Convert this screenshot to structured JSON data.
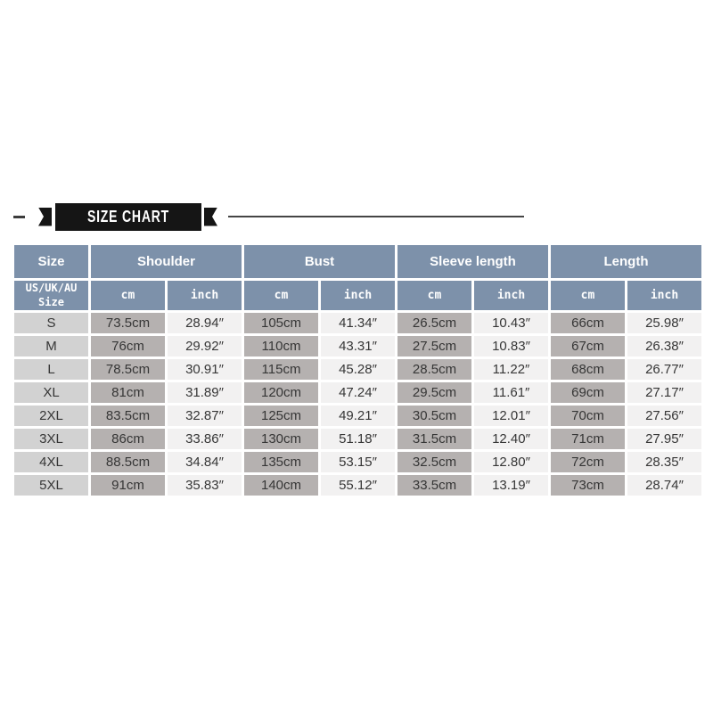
{
  "banner": {
    "title": "SIZE CHART"
  },
  "colors": {
    "header_blue": "#7d91aa",
    "size_cell_gray": "#d2d2d2",
    "cm_cell_gray": "#b5b1b0",
    "inch_cell_light": "#f2f1f1",
    "ribbon_black": "#151515",
    "text_dark": "#363636"
  },
  "chart_data": {
    "type": "table",
    "title": "SIZE CHART",
    "column_groups": [
      "Size",
      "Shoulder",
      "Bust",
      "Sleeve length",
      "Length"
    ],
    "size_header": [
      "US/UK/AU",
      "Size"
    ],
    "units": [
      "cm",
      "inch"
    ],
    "columns": [
      "Size (US/UK/AU)",
      "Shoulder cm",
      "Shoulder inch",
      "Bust cm",
      "Bust inch",
      "Sleeve length cm",
      "Sleeve length inch",
      "Length cm",
      "Length inch"
    ],
    "rows": [
      {
        "size": "S",
        "values": [
          "73.5cm",
          "28.94″",
          "105cm",
          "41.34″",
          "26.5cm",
          "10.43″",
          "66cm",
          "25.98″"
        ]
      },
      {
        "size": "M",
        "values": [
          "76cm",
          "29.92″",
          "110cm",
          "43.31″",
          "27.5cm",
          "10.83″",
          "67cm",
          "26.38″"
        ]
      },
      {
        "size": "L",
        "values": [
          "78.5cm",
          "30.91″",
          "115cm",
          "45.28″",
          "28.5cm",
          "11.22″",
          "68cm",
          "26.77″"
        ]
      },
      {
        "size": "XL",
        "values": [
          "81cm",
          "31.89″",
          "120cm",
          "47.24″",
          "29.5cm",
          "11.61″",
          "69cm",
          "27.17″"
        ]
      },
      {
        "size": "2XL",
        "values": [
          "83.5cm",
          "32.87″",
          "125cm",
          "49.21″",
          "30.5cm",
          "12.01″",
          "70cm",
          "27.56″"
        ]
      },
      {
        "size": "3XL",
        "values": [
          "86cm",
          "33.86″",
          "130cm",
          "51.18″",
          "31.5cm",
          "12.40″",
          "71cm",
          "27.95″"
        ]
      },
      {
        "size": "4XL",
        "values": [
          "88.5cm",
          "34.84″",
          "135cm",
          "53.15″",
          "32.5cm",
          "12.80″",
          "72cm",
          "28.35″"
        ]
      },
      {
        "size": "5XL",
        "values": [
          "91cm",
          "35.83″",
          "140cm",
          "55.12″",
          "33.5cm",
          "13.19″",
          "73cm",
          "28.74″"
        ]
      }
    ]
  }
}
